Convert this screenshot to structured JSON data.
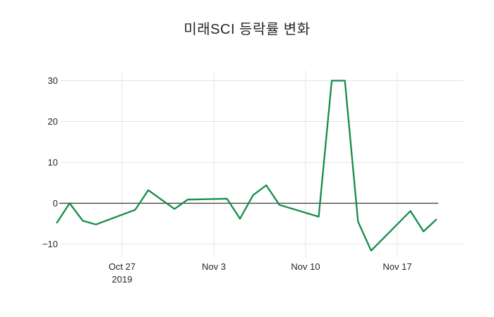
{
  "title": "미래SCI 등락률 변화",
  "colors": {
    "line": "#148C4A",
    "zero_line": "#3A3A3A",
    "grid": "#E4E4E4",
    "text": "#262626",
    "background": "#FFFFFF"
  },
  "chart_data": {
    "type": "line",
    "title": "미래SCI 등락률 변화",
    "xlabel": "",
    "ylabel": "",
    "legend": false,
    "grid": true,
    "zero_line": true,
    "ylim": [
      -13.5,
      32.5
    ],
    "x": [
      "2019-10-22",
      "2019-10-23",
      "2019-10-24",
      "2019-10-25",
      "2019-10-28",
      "2019-10-29",
      "2019-10-30",
      "2019-10-31",
      "2019-11-01",
      "2019-11-04",
      "2019-11-05",
      "2019-11-06",
      "2019-11-07",
      "2019-11-08",
      "2019-11-11",
      "2019-11-12",
      "2019-11-13",
      "2019-11-14",
      "2019-11-15",
      "2019-11-18",
      "2019-11-19",
      "2019-11-20"
    ],
    "values": [
      -4.9,
      0.0,
      -4.3,
      -5.2,
      -1.6,
      3.2,
      0.9,
      -1.4,
      0.9,
      1.1,
      -3.8,
      2.0,
      4.4,
      -0.4,
      -3.3,
      30.0,
      30.0,
      -4.5,
      -11.6,
      -1.9,
      -6.9,
      -3.9
    ],
    "yticks": [
      {
        "value": 30,
        "label": "30"
      },
      {
        "value": 20,
        "label": "20"
      },
      {
        "value": 10,
        "label": "10"
      },
      {
        "value": 0,
        "label": "0"
      },
      {
        "value": -10,
        "label": "−10"
      }
    ],
    "xticks": [
      {
        "date": "2019-10-27",
        "label": "Oct 27",
        "sublabel": "2019"
      },
      {
        "date": "2019-11-03",
        "label": "Nov 3",
        "sublabel": ""
      },
      {
        "date": "2019-11-10",
        "label": "Nov 10",
        "sublabel": ""
      },
      {
        "date": "2019-11-17",
        "label": "Nov 17",
        "sublabel": ""
      }
    ]
  }
}
